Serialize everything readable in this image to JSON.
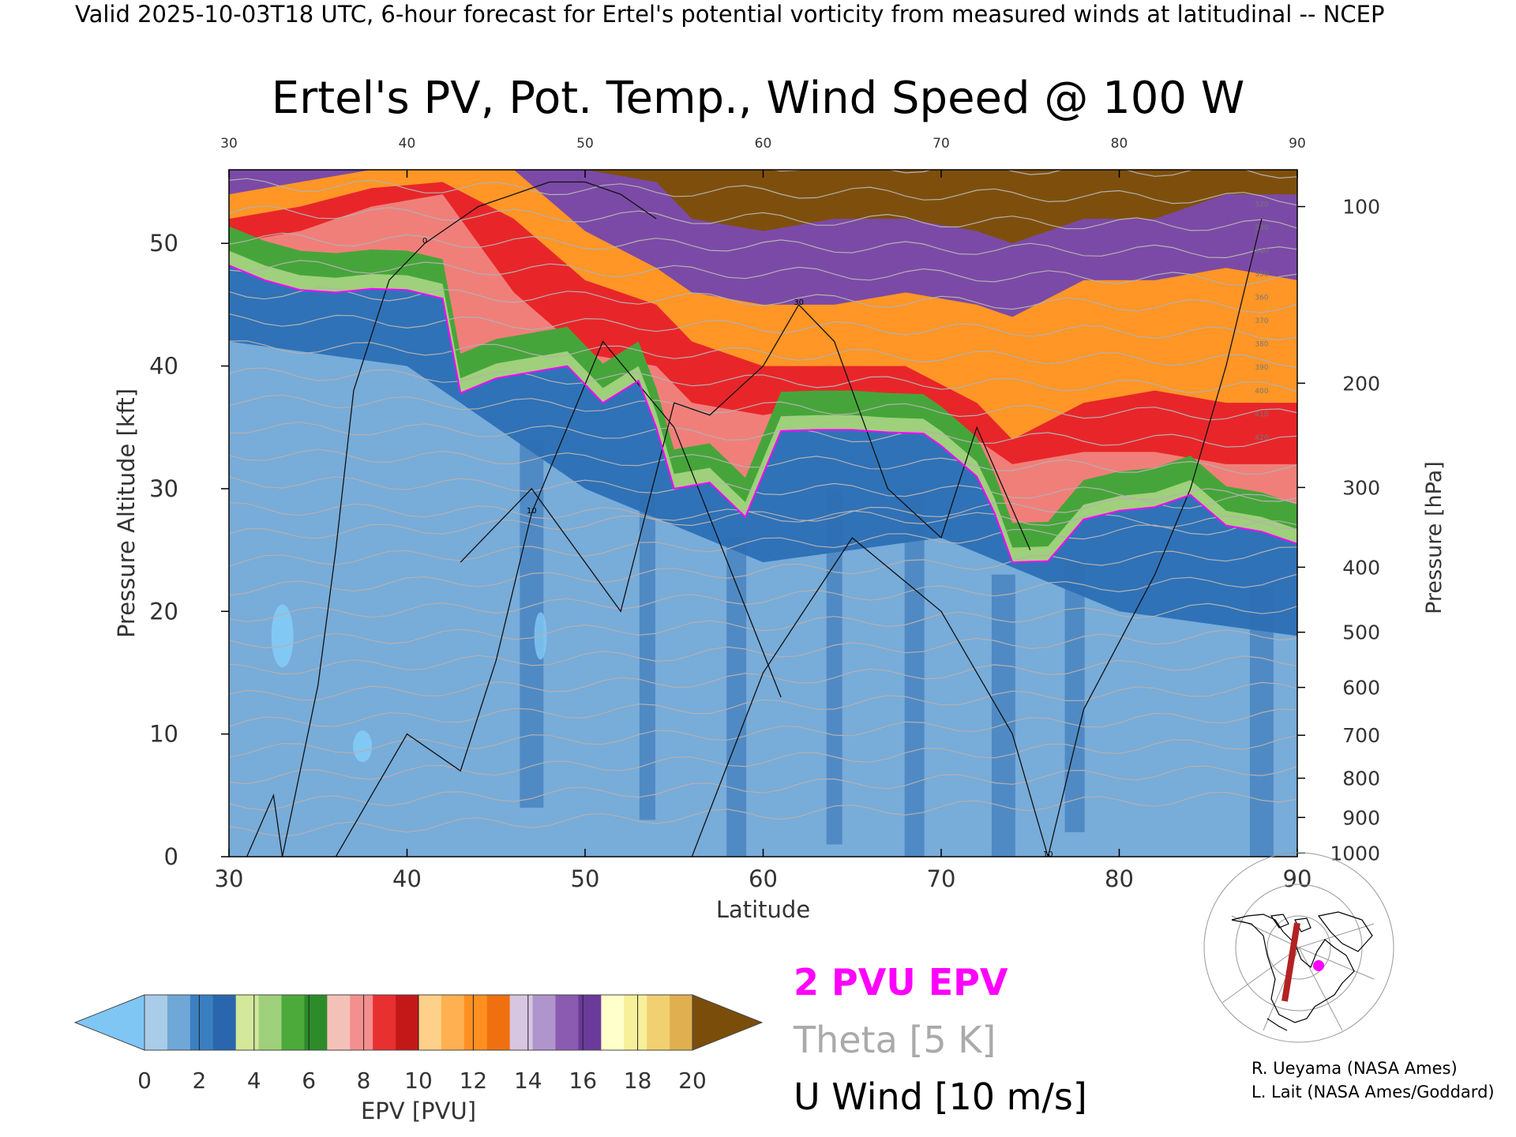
{
  "header": {
    "line": "Valid 2025-10-03T18 UTC, 6-hour forecast for Ertel's potential vorticity from measured winds at latitudinal -- NCEP",
    "title": "Ertel's PV, Pot. Temp., Wind Speed @ 100 W"
  },
  "chart_data": {
    "type": "heatmap",
    "title": "Ertel's PV, Pot. Temp., Wind Speed @ 100 W",
    "xlabel": "Latitude",
    "ylabel": "Pressure Altitude [kft]",
    "y2label": "Pressure [hPa]",
    "xlim": [
      30,
      90
    ],
    "ylim": [
      0,
      56
    ],
    "x_ticks": [
      30,
      40,
      50,
      60,
      70,
      80,
      90
    ],
    "y_ticks": [
      0,
      10,
      20,
      30,
      40,
      50
    ],
    "pressure_ticks": [
      {
        "label": "100",
        "kft": 53.0
      },
      {
        "label": "200",
        "kft": 38.6
      },
      {
        "label": "300",
        "kft": 30.1
      },
      {
        "label": "400",
        "kft": 23.6
      },
      {
        "label": "500",
        "kft": 18.3
      },
      {
        "label": "600",
        "kft": 13.8
      },
      {
        "label": "700",
        "kft": 9.9
      },
      {
        "label": "800",
        "kft": 6.4
      },
      {
        "label": "900",
        "kft": 3.2
      },
      {
        "label": "1000",
        "kft": 0.3
      }
    ],
    "tropopause_2pvu": {
      "lat": [
        30,
        32,
        34,
        36,
        38,
        40,
        42,
        43,
        45,
        47,
        49,
        51,
        53,
        54,
        55,
        57,
        59,
        61,
        63,
        65,
        67,
        69,
        70,
        72,
        73,
        74,
        76,
        78,
        80,
        82,
        84,
        86,
        88,
        90
      ],
      "kft": [
        48.2,
        47.0,
        46.2,
        46.0,
        46.3,
        46.2,
        45.5,
        37.8,
        39.0,
        39.5,
        40.0,
        37.0,
        38.8,
        35.0,
        30.0,
        30.5,
        27.7,
        34.7,
        34.8,
        34.8,
        34.6,
        34.5,
        33.5,
        31.0,
        28.0,
        24.0,
        24.1,
        27.5,
        28.2,
        28.5,
        29.5,
        27.0,
        26.5,
        25.5
      ]
    },
    "epv_band_upper_kft": {
      "lat": [
        30,
        34,
        38,
        42,
        46,
        50,
        54,
        56,
        60,
        64,
        68,
        72,
        74,
        78,
        82,
        86,
        90
      ],
      "green_to_pink": [
        50,
        51,
        53,
        54,
        46,
        41,
        40,
        37,
        36,
        37,
        37,
        34,
        32,
        33,
        33,
        32,
        32
      ],
      "pink_to_red": [
        52,
        53,
        54.5,
        55,
        52,
        47,
        45,
        42,
        40,
        40,
        40,
        37,
        34,
        37,
        38,
        37,
        37
      ],
      "red_to_orange": [
        54,
        55,
        56,
        56,
        56,
        51,
        48,
        46,
        45,
        45,
        46,
        45,
        44,
        47,
        47,
        48,
        47
      ],
      "orange_to_purple": [
        56,
        56,
        56,
        56,
        56,
        56,
        55,
        52,
        51,
        52,
        52,
        51,
        50,
        52,
        52,
        54,
        54
      ]
    },
    "wind_contours": [
      {
        "label": "0",
        "lat": [
          31,
          32.5,
          33,
          35,
          36,
          37,
          39,
          41,
          44,
          46,
          48,
          50,
          52,
          54
        ],
        "kft": [
          0,
          5,
          0,
          14,
          25,
          38,
          47,
          50,
          53,
          54,
          55,
          55,
          54,
          52
        ]
      },
      {
        "label": "10",
        "lat": [
          36,
          40,
          43,
          45,
          47,
          51,
          55,
          58,
          61
        ],
        "kft": [
          0,
          10,
          7,
          16,
          28,
          42,
          35,
          24,
          13
        ]
      },
      {
        "label": "30",
        "lat": [
          43,
          47,
          52,
          55,
          57,
          60,
          62,
          64,
          67,
          70,
          72,
          75
        ],
        "kft": [
          24,
          30,
          20,
          37,
          36,
          40,
          45,
          42,
          30,
          26,
          35,
          25
        ]
      },
      {
        "label": "10",
        "lat": [
          56,
          60,
          65,
          70,
          74,
          76,
          78,
          82,
          84,
          86,
          88
        ],
        "kft": [
          0,
          15,
          26,
          20,
          10,
          0,
          12,
          23,
          30,
          40,
          52
        ]
      }
    ],
    "theta_labels": [
      "320",
      "330",
      "340",
      "350",
      "360",
      "370",
      "380",
      "390",
      "400",
      "410",
      "420"
    ]
  },
  "colorbar": {
    "label": "EPV [PVU]",
    "ticks": [
      "0",
      "2",
      "4",
      "6",
      "8",
      "10",
      "12",
      "14",
      "16",
      "18",
      "20"
    ],
    "colors": [
      "#a9cce8",
      "#6fa8d6",
      "#3a7fc0",
      "#2a66ae",
      "#d3e89a",
      "#9fd07c",
      "#4caa3a",
      "#2e8b2a",
      "#f4c1b8",
      "#f48f8f",
      "#e83030",
      "#c41818",
      "#ffd08a",
      "#ffb050",
      "#ff9020",
      "#f07010",
      "#d7c6e2",
      "#b095cc",
      "#8a5bb0",
      "#6a3a9a",
      "#ffffcc",
      "#f8ef9a",
      "#f0d070",
      "#e0b050"
    ],
    "under_color": "#7fc6f5",
    "over_color": "#7a4e0a"
  },
  "legend": {
    "pvu": "2 PVU EPV",
    "theta": "Theta [5 K]",
    "wind": "U Wind [10 m/s]",
    "pvu_color": "#ff00ff",
    "theta_color": "#aaaaaa",
    "wind_color": "#000000"
  },
  "credits": {
    "line1": "R. Ueyama (NASA Ames)",
    "line2": "L. Lait (NASA Ames/Goddard)"
  }
}
